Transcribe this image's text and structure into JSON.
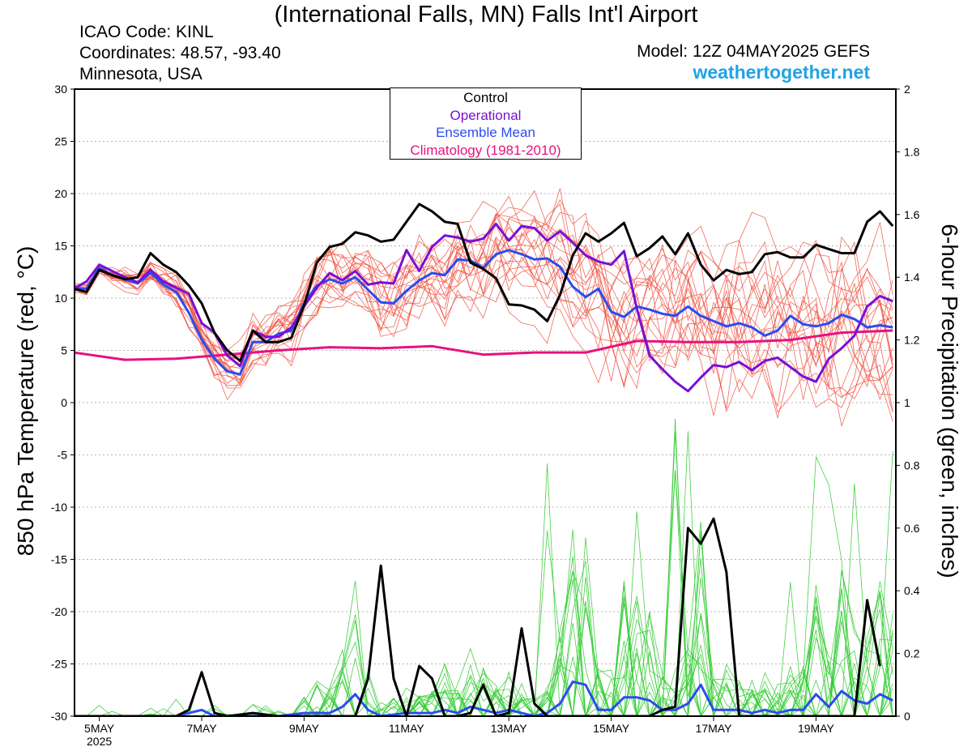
{
  "header": {
    "title": "(International Falls, MN) Falls Int'l Airport",
    "icao": "ICAO Code: KINL",
    "coords": "Coordinates: 48.57, -93.40",
    "region": "Minnesota, USA",
    "model": "Model: 12Z 04MAY2025 GEFS",
    "site": "weathertogether.net"
  },
  "legend": {
    "control": "Control",
    "operational": "Operational",
    "mean": "Ensemble Mean",
    "climo": "Climatology (1981-2010)"
  },
  "colors": {
    "control": "#000000",
    "operational": "#7a0fd6",
    "mean": "#2a4cf0",
    "climo": "#e8117f",
    "members_temp": "#f05040",
    "members_precip": "#33cc33",
    "brand": "#1fa3e8"
  },
  "chart_data": {
    "type": "line",
    "ylabel": "850 hPa Temperature (red, °C)",
    "y2label": "6-hour Precipitation (green, inches)",
    "ylim": [
      -30,
      30
    ],
    "y2lim": [
      0,
      2
    ],
    "yticks": [
      "30",
      "25",
      "20",
      "15",
      "10",
      "5",
      "0",
      "-5",
      "-10",
      "-15",
      "-20",
      "-25",
      "-30"
    ],
    "y2ticks": [
      "2",
      "1.8",
      "1.6",
      "1.4",
      "1.2",
      "1",
      "0.8",
      "0.6",
      "0.4",
      "0.2",
      "0"
    ],
    "xticks": [
      "5MAY",
      "7MAY",
      "9MAY",
      "11MAY",
      "13MAY",
      "15MAY",
      "17MAY",
      "19MAY"
    ],
    "xyear": "2025",
    "x_unit": "days after 12Z 04MAY2025",
    "xlim": [
      0,
      16
    ],
    "grid": true,
    "legend_position": "top-center",
    "temperature": {
      "control": [
        [
          0,
          10.9
        ],
        [
          0.25,
          10.6
        ],
        [
          0.5,
          12.7
        ],
        [
          0.75,
          12.2
        ],
        [
          1,
          11.8
        ],
        [
          1.25,
          12.0
        ],
        [
          1.5,
          14.3
        ],
        [
          1.75,
          13.2
        ],
        [
          2,
          12.5
        ],
        [
          2.25,
          11.2
        ],
        [
          2.5,
          9.5
        ],
        [
          2.75,
          6.7
        ],
        [
          3,
          5.0
        ],
        [
          3.25,
          4.0
        ],
        [
          3.5,
          6.9
        ],
        [
          3.75,
          5.8
        ],
        [
          4,
          5.8
        ],
        [
          4.25,
          6.2
        ],
        [
          4.5,
          9.3
        ],
        [
          4.75,
          13.4
        ],
        [
          5,
          14.9
        ],
        [
          5.25,
          15.2
        ],
        [
          5.5,
          16.3
        ],
        [
          5.75,
          16.0
        ],
        [
          6,
          15.4
        ],
        [
          6.25,
          15.6
        ],
        [
          6.5,
          17.3
        ],
        [
          6.75,
          19.0
        ],
        [
          7,
          18.3
        ],
        [
          7.25,
          17.3
        ],
        [
          7.5,
          17.1
        ],
        [
          7.75,
          13.4
        ],
        [
          8,
          12.8
        ],
        [
          8.25,
          11.9
        ],
        [
          8.5,
          9.4
        ],
        [
          8.75,
          9.3
        ],
        [
          9,
          8.9
        ],
        [
          9.25,
          7.8
        ],
        [
          9.5,
          10.3
        ],
        [
          9.75,
          14.1
        ],
        [
          10,
          16.2
        ],
        [
          10.25,
          15.4
        ],
        [
          10.5,
          16.2
        ],
        [
          10.75,
          17.2
        ],
        [
          11,
          14.0
        ],
        [
          11.25,
          14.8
        ],
        [
          11.5,
          15.9
        ],
        [
          11.75,
          14.2
        ],
        [
          12,
          16.2
        ],
        [
          12.25,
          13.2
        ],
        [
          12.5,
          11.7
        ],
        [
          12.75,
          12.7
        ],
        [
          13,
          12.3
        ],
        [
          13.25,
          12.5
        ],
        [
          13.5,
          14.2
        ],
        [
          13.75,
          14.4
        ],
        [
          14,
          13.9
        ],
        [
          14.25,
          13.9
        ],
        [
          14.5,
          15.1
        ],
        [
          14.75,
          14.7
        ],
        [
          15,
          14.3
        ],
        [
          15.25,
          14.3
        ],
        [
          15.5,
          17.3
        ],
        [
          15.75,
          18.3
        ],
        [
          16,
          16.9
        ]
      ],
      "operational": [
        [
          0,
          10.9
        ],
        [
          0.25,
          11.6
        ],
        [
          0.5,
          13.2
        ],
        [
          0.75,
          12.6
        ],
        [
          1,
          12.0
        ],
        [
          1.25,
          11.5
        ],
        [
          1.5,
          12.7
        ],
        [
          1.75,
          11.6
        ],
        [
          2,
          11.0
        ],
        [
          2.25,
          10.4
        ],
        [
          2.5,
          7.6
        ],
        [
          2.75,
          6.7
        ],
        [
          3,
          4.5
        ],
        [
          3.25,
          3.5
        ],
        [
          3.5,
          6.9
        ],
        [
          3.75,
          6.3
        ],
        [
          4,
          6.3
        ],
        [
          4.25,
          7.2
        ],
        [
          4.5,
          9.2
        ],
        [
          4.75,
          11.0
        ],
        [
          5,
          12.4
        ],
        [
          5.25,
          11.7
        ],
        [
          5.5,
          12.6
        ],
        [
          5.75,
          11.3
        ],
        [
          6,
          11.5
        ],
        [
          6.25,
          11.4
        ],
        [
          6.5,
          14.6
        ],
        [
          6.75,
          12.6
        ],
        [
          7,
          14.9
        ],
        [
          7.25,
          16.0
        ],
        [
          7.5,
          15.8
        ],
        [
          7.75,
          15.4
        ],
        [
          8,
          15.7
        ],
        [
          8.25,
          17.1
        ],
        [
          8.5,
          15.5
        ],
        [
          8.75,
          16.9
        ],
        [
          9,
          16.7
        ],
        [
          9.25,
          15.5
        ],
        [
          9.5,
          16.4
        ],
        [
          9.75,
          15.3
        ],
        [
          10,
          14.1
        ],
        [
          10.25,
          13.5
        ],
        [
          10.5,
          13.2
        ],
        [
          10.75,
          14.5
        ],
        [
          11,
          9.0
        ],
        [
          11.25,
          4.5
        ],
        [
          11.5,
          3.2
        ],
        [
          11.75,
          2.0
        ],
        [
          12,
          1.1
        ],
        [
          12.25,
          2.4
        ],
        [
          12.5,
          3.6
        ],
        [
          12.75,
          3.4
        ],
        [
          13,
          3.9
        ],
        [
          13.25,
          3.1
        ],
        [
          13.5,
          4.0
        ],
        [
          13.75,
          4.3
        ],
        [
          14,
          3.4
        ],
        [
          14.25,
          2.5
        ],
        [
          14.5,
          2.0
        ],
        [
          14.75,
          4.2
        ],
        [
          15,
          5.2
        ],
        [
          15.25,
          6.4
        ],
        [
          15.5,
          9.2
        ],
        [
          15.75,
          10.2
        ],
        [
          16,
          9.7
        ]
      ],
      "mean": [
        [
          0,
          11.0
        ],
        [
          0.25,
          10.9
        ],
        [
          0.5,
          12.9
        ],
        [
          0.75,
          12.2
        ],
        [
          1,
          11.8
        ],
        [
          1.25,
          11.4
        ],
        [
          1.5,
          12.4
        ],
        [
          1.75,
          11.3
        ],
        [
          2,
          10.6
        ],
        [
          2.25,
          8.6
        ],
        [
          2.5,
          6.0
        ],
        [
          2.75,
          4.2
        ],
        [
          3,
          3.0
        ],
        [
          3.25,
          2.7
        ],
        [
          3.5,
          5.8
        ],
        [
          3.75,
          5.8
        ],
        [
          4,
          6.6
        ],
        [
          4.25,
          6.9
        ],
        [
          4.5,
          9.5
        ],
        [
          4.75,
          11.2
        ],
        [
          5,
          11.8
        ],
        [
          5.25,
          11.4
        ],
        [
          5.5,
          12.0
        ],
        [
          5.75,
          10.8
        ],
        [
          6,
          9.6
        ],
        [
          6.25,
          9.5
        ],
        [
          6.5,
          10.7
        ],
        [
          6.75,
          11.7
        ],
        [
          7,
          12.4
        ],
        [
          7.25,
          12.2
        ],
        [
          7.5,
          13.7
        ],
        [
          7.75,
          13.6
        ],
        [
          8,
          12.9
        ],
        [
          8.25,
          14.2
        ],
        [
          8.5,
          14.6
        ],
        [
          8.75,
          14.2
        ],
        [
          9,
          13.7
        ],
        [
          9.25,
          13.8
        ],
        [
          9.5,
          13.0
        ],
        [
          9.75,
          11.1
        ],
        [
          10,
          10.1
        ],
        [
          10.25,
          10.9
        ],
        [
          10.5,
          8.7
        ],
        [
          10.75,
          8.2
        ],
        [
          11,
          9.2
        ],
        [
          11.25,
          8.9
        ],
        [
          11.5,
          8.5
        ],
        [
          11.75,
          8.3
        ],
        [
          12,
          9.2
        ],
        [
          12.25,
          8.3
        ],
        [
          12.5,
          7.8
        ],
        [
          12.75,
          7.3
        ],
        [
          13,
          7.6
        ],
        [
          13.25,
          7.2
        ],
        [
          13.5,
          6.4
        ],
        [
          13.75,
          6.9
        ],
        [
          14,
          8.3
        ],
        [
          14.25,
          7.5
        ],
        [
          14.5,
          7.3
        ],
        [
          14.75,
          7.6
        ],
        [
          15,
          8.4
        ],
        [
          15.25,
          8.0
        ],
        [
          15.5,
          7.2
        ],
        [
          15.75,
          7.4
        ],
        [
          16,
          7.2
        ]
      ],
      "climatology": [
        [
          0,
          4.8
        ],
        [
          1,
          4.1
        ],
        [
          2,
          4.2
        ],
        [
          3,
          4.6
        ],
        [
          4,
          5.0
        ],
        [
          5,
          5.3
        ],
        [
          6,
          5.2
        ],
        [
          7,
          5.4
        ],
        [
          8,
          4.6
        ],
        [
          9,
          4.8
        ],
        [
          10,
          4.8
        ],
        [
          11,
          5.9
        ],
        [
          12,
          5.8
        ],
        [
          13,
          5.8
        ],
        [
          14,
          6.0
        ],
        [
          15,
          6.7
        ],
        [
          16,
          6.9
        ]
      ]
    },
    "precipitation": {
      "control": [
        [
          0,
          0
        ],
        [
          1,
          0
        ],
        [
          2,
          0
        ],
        [
          2.25,
          0.02
        ],
        [
          2.5,
          0.14
        ],
        [
          2.75,
          0.01
        ],
        [
          3,
          0
        ],
        [
          3.5,
          0.01
        ],
        [
          4,
          0
        ],
        [
          5,
          0
        ],
        [
          5.5,
          0
        ],
        [
          5.75,
          0.12
        ],
        [
          6,
          0.48
        ],
        [
          6.25,
          0.12
        ],
        [
          6.5,
          0
        ],
        [
          6.75,
          0.16
        ],
        [
          7,
          0.12
        ],
        [
          7.25,
          0
        ],
        [
          7.5,
          0
        ],
        [
          7.75,
          0.01
        ],
        [
          8,
          0.1
        ],
        [
          8.25,
          0
        ],
        [
          8.5,
          0.01
        ],
        [
          8.75,
          0.28
        ],
        [
          9,
          0.04
        ],
        [
          9.25,
          0
        ],
        [
          10,
          0
        ],
        [
          11,
          0
        ],
        [
          11.25,
          0
        ],
        [
          11.5,
          0.02
        ],
        [
          11.75,
          0.03
        ],
        [
          12,
          0.6
        ],
        [
          12.25,
          0.55
        ],
        [
          12.5,
          0.63
        ],
        [
          12.75,
          0.46
        ],
        [
          13,
          0
        ],
        [
          14,
          0
        ],
        [
          15,
          0
        ],
        [
          15.25,
          0
        ],
        [
          15.5,
          0.37
        ],
        [
          15.75,
          0.16
        ]
      ],
      "mean": [
        [
          0,
          0
        ],
        [
          1,
          0
        ],
        [
          2,
          0
        ],
        [
          2.5,
          0.02
        ],
        [
          2.75,
          0
        ],
        [
          3,
          0
        ],
        [
          4,
          0
        ],
        [
          4.5,
          0.01
        ],
        [
          5,
          0.01
        ],
        [
          5.25,
          0.03
        ],
        [
          5.5,
          0.07
        ],
        [
          5.75,
          0.02
        ],
        [
          6,
          0
        ],
        [
          6.5,
          0.01
        ],
        [
          7,
          0.01
        ],
        [
          7.25,
          0.02
        ],
        [
          7.5,
          0.01
        ],
        [
          7.75,
          0.03
        ],
        [
          8,
          0.02
        ],
        [
          8.25,
          0.01
        ],
        [
          8.5,
          0.02
        ],
        [
          8.75,
          0.01
        ],
        [
          9,
          0
        ],
        [
          9.25,
          0.01
        ],
        [
          9.5,
          0.04
        ],
        [
          9.75,
          0.11
        ],
        [
          10,
          0.1
        ],
        [
          10.25,
          0.02
        ],
        [
          10.5,
          0.02
        ],
        [
          10.75,
          0.06
        ],
        [
          11,
          0.06
        ],
        [
          11.25,
          0.05
        ],
        [
          11.5,
          0.02
        ],
        [
          11.75,
          0.02
        ],
        [
          12,
          0.04
        ],
        [
          12.25,
          0.1
        ],
        [
          12.5,
          0.02
        ],
        [
          12.75,
          0.02
        ],
        [
          13,
          0.02
        ],
        [
          13.25,
          0.01
        ],
        [
          13.5,
          0.02
        ],
        [
          13.75,
          0.01
        ],
        [
          14,
          0.02
        ],
        [
          14.25,
          0.02
        ],
        [
          14.5,
          0.07
        ],
        [
          14.75,
          0.03
        ],
        [
          15,
          0.08
        ],
        [
          15.25,
          0.05
        ],
        [
          15.5,
          0.04
        ],
        [
          15.75,
          0.07
        ],
        [
          16,
          0.05
        ]
      ]
    }
  }
}
